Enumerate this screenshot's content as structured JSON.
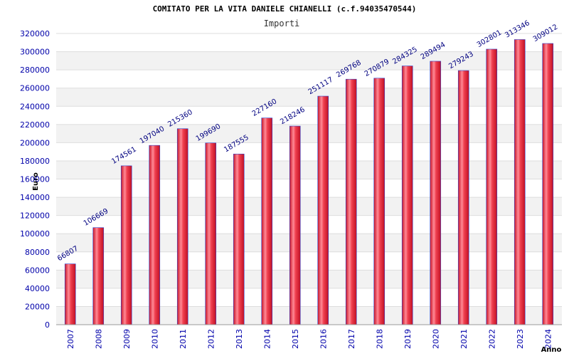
{
  "chart_data": {
    "type": "bar",
    "title": "COMITATO PER LA VITA DANIELE CHIANELLI (c.f.94035470544)",
    "subtitle": "Importi",
    "xlabel": "Anno",
    "ylabel": "Euro",
    "categories": [
      "2007",
      "2008",
      "2009",
      "2010",
      "2011",
      "2012",
      "2013",
      "2014",
      "2015",
      "2016",
      "2017",
      "2018",
      "2019",
      "2020",
      "2021",
      "2022",
      "2023",
      "2024"
    ],
    "values": [
      66807,
      106669,
      174561,
      197040,
      215360,
      199690,
      187555,
      227160,
      218246,
      251117,
      269768,
      270879,
      284325,
      289494,
      279243,
      302801,
      313346,
      309012
    ],
    "ylim": [
      0,
      320000
    ],
    "yticks": [
      "0",
      "20000",
      "40000",
      "60000",
      "80000",
      "100000",
      "120000",
      "140000",
      "160000",
      "180000",
      "200000",
      "220000",
      "240000",
      "260000",
      "280000",
      "300000",
      "320000"
    ],
    "grid": true,
    "colors": {
      "bar": "#e8283c",
      "bar_highlight": "#ff9aa4",
      "bar_edge": "#3344cc",
      "band": "#f2f2f2",
      "tick_text": "#0000aa",
      "data_label": "#000080"
    }
  }
}
